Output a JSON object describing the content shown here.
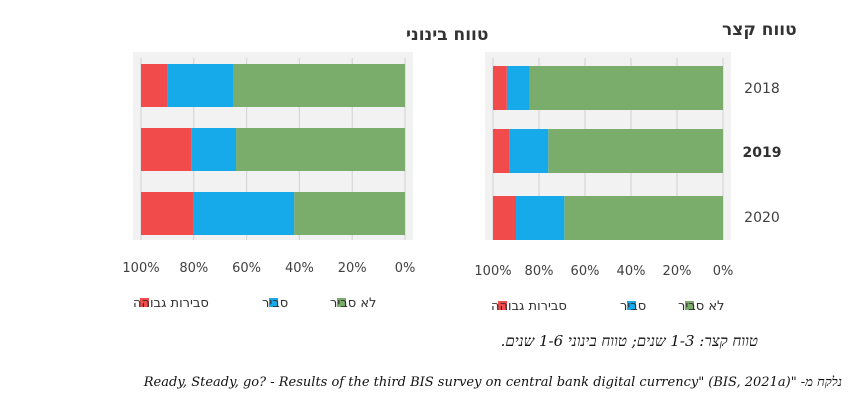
{
  "colors": {
    "green": "#7aac6c",
    "blue": "#17aaeb",
    "red": "#f24b4b"
  },
  "legend": [
    "לא סביר",
    "סביר",
    "סבירות גבוהה"
  ],
  "caption": "טווח קצר: 1-3 שנים; טווח בינוני 1-6 שנים.",
  "source": {
    "prefix": "נלקח מ- \"",
    "text": "Ready, Steady, go? - Results of the third BIS survey on central bank digital currency\" (BIS, 2021a)"
  },
  "chart_data": [
    {
      "type": "bar",
      "orientation": "horizontal",
      "stacked": true,
      "title": "טווח קצר",
      "categories": [
        "2018",
        "2019",
        "2020"
      ],
      "category_bold": [
        false,
        true,
        false
      ],
      "series": [
        {
          "name": "לא סביר",
          "color": "#7aac6c",
          "values": [
            84,
            76,
            69
          ]
        },
        {
          "name": "סביר",
          "color": "#17aaeb",
          "values": [
            10,
            17,
            21
          ]
        },
        {
          "name": "סבירות גבוהה",
          "color": "#f24b4b",
          "values": [
            6,
            7,
            10
          ]
        }
      ],
      "xlim": [
        100,
        0
      ],
      "xticks": [
        "100%",
        "80%",
        "60%",
        "40%",
        "20%",
        "0%"
      ],
      "grid": true,
      "legend_position": "bottom"
    },
    {
      "type": "bar",
      "orientation": "horizontal",
      "stacked": true,
      "title": "טווח בינוני",
      "categories": [
        "2018",
        "2019",
        "2020"
      ],
      "series": [
        {
          "name": "לא סביר",
          "color": "#7aac6c",
          "values": [
            65,
            64,
            42
          ]
        },
        {
          "name": "סביר",
          "color": "#17aaeb",
          "values": [
            25,
            17,
            38
          ]
        },
        {
          "name": "סבירות גבוהה",
          "color": "#f24b4b",
          "values": [
            10,
            19,
            20
          ]
        }
      ],
      "xlim": [
        100,
        0
      ],
      "xticks": [
        "100%",
        "80%",
        "60%",
        "40%",
        "20%",
        "0%"
      ],
      "grid": true,
      "legend_position": "bottom"
    }
  ]
}
